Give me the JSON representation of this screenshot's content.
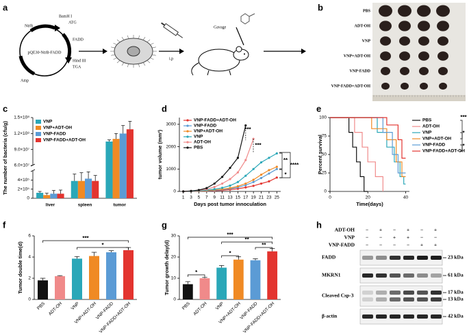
{
  "panel_labels": [
    "a",
    "b",
    "c",
    "d",
    "e",
    "f",
    "g",
    "h"
  ],
  "diagram": {
    "plasmid": "pQE30-NtrB-FADD",
    "sites": [
      "NtrB",
      "BamH I",
      "ATG",
      "FADD",
      "Hind III",
      "TGA",
      "Amp"
    ],
    "route": "i.p",
    "gavage": "Gavage"
  },
  "photo": {
    "groups": [
      "PBS",
      "ADT-OH",
      "VNP",
      "VNP+ADT-OH",
      "VNP-FADD",
      "VNP-FADD+ADT-OH"
    ]
  },
  "chart_data": [
    {
      "type": "bar",
      "ylabel": "The number of bacteria (cfu/g)",
      "categories": [
        "liver",
        "spleen",
        "tumor"
      ],
      "series": [
        {
          "name": "VNP",
          "color": "#2aa7b8",
          "values": [
            120000,
            380000,
            105000000
          ],
          "errors": [
            30000,
            150000,
            3000000
          ]
        },
        {
          "name": "VNP+ADT-OH",
          "color": "#f08a24",
          "values": [
            70000,
            380000,
            110000000
          ],
          "errors": [
            40000,
            180000,
            10000000
          ]
        },
        {
          "name": "VNP-FADD",
          "color": "#5b9bd5",
          "values": [
            100000,
            430000,
            120000000
          ],
          "errors": [
            70000,
            150000,
            15000000
          ]
        },
        {
          "name": "VNP-FADD+ADT-OH",
          "color": "#e3342f",
          "values": [
            100000,
            380000,
            128000000
          ],
          "errors": [
            80000,
            120000,
            15000000
          ]
        }
      ],
      "y_segments": [
        {
          "ylim": [
            0,
            600000
          ],
          "yticks": [
            0,
            {
              "value": 200000,
              "label": "2×10⁵"
            },
            {
              "value": 400000,
              "label": "4×10⁵"
            }
          ]
        },
        {
          "ylim": [
            60000000,
            150000000
          ],
          "yticks": [
            {
              "value": 60000000,
              "label": "6.0×10⁷"
            },
            {
              "value": 90000000,
              "label": "9.0×10⁷"
            },
            {
              "value": 120000000,
              "label": "1.2×10⁸"
            },
            {
              "value": 150000000,
              "label": "1.5×10⁸"
            }
          ]
        }
      ]
    },
    {
      "type": "line",
      "ylabel": "tumor volume (mm³)",
      "xlabel": "Days post tumor innoculation",
      "markers": true,
      "xlim": [
        0,
        26
      ],
      "xticks": [
        1,
        3,
        5,
        7,
        9,
        11,
        13,
        15,
        17,
        19,
        21,
        23,
        25
      ],
      "ylim": [
        0,
        3300
      ],
      "yticks": [
        0,
        1000,
        2000,
        3000
      ],
      "series": [
        {
          "name": "VNP-FADD+ADT-OH",
          "color": "#e3342f",
          "x": [
            1,
            3,
            5,
            7,
            9,
            11,
            13,
            15,
            17,
            19,
            21,
            23,
            25
          ],
          "values": [
            0,
            5,
            10,
            20,
            30,
            50,
            80,
            120,
            180,
            250,
            350,
            450,
            620
          ]
        },
        {
          "name": "VNP-FADD",
          "color": "#5b9bd5",
          "x": [
            1,
            3,
            5,
            7,
            9,
            11,
            13,
            15,
            17,
            19,
            21,
            23,
            25
          ],
          "values": [
            0,
            10,
            20,
            30,
            50,
            80,
            120,
            180,
            280,
            420,
            600,
            800,
            1000
          ]
        },
        {
          "name": "VNP+ADT-OH",
          "color": "#f08a24",
          "x": [
            1,
            3,
            5,
            7,
            9,
            11,
            13,
            15,
            17,
            19,
            21,
            23,
            25
          ],
          "values": [
            0,
            10,
            20,
            40,
            70,
            100,
            150,
            230,
            350,
            520,
            750,
            950,
            1100
          ]
        },
        {
          "name": "VNP",
          "color": "#2aa7b8",
          "x": [
            1,
            3,
            5,
            7,
            9,
            11,
            13,
            15,
            17,
            19,
            21,
            23,
            25
          ],
          "values": [
            0,
            10,
            30,
            60,
            100,
            160,
            260,
            420,
            700,
            1000,
            1300,
            1500,
            1700
          ]
        },
        {
          "name": "ADT-OH",
          "color": "#f08a8a",
          "x": [
            1,
            3,
            5,
            7,
            9,
            11,
            13,
            15,
            17,
            19
          ],
          "values": [
            0,
            20,
            50,
            100,
            200,
            350,
            550,
            850,
            1400,
            2350
          ]
        },
        {
          "name": "PBS",
          "color": "#111111",
          "x": [
            1,
            3,
            5,
            7,
            9,
            11,
            13,
            15,
            17
          ],
          "values": [
            0,
            20,
            60,
            150,
            350,
            650,
            1050,
            1500,
            2950
          ]
        }
      ],
      "annotations": [
        "***",
        "***",
        "**",
        "****",
        "*"
      ]
    },
    {
      "type": "line",
      "ylabel": "Percent survival",
      "xlabel": "Time(days)",
      "markers": false,
      "xlim": [
        0,
        42
      ],
      "xticks": [
        0,
        20,
        40
      ],
      "ylim": [
        0,
        100
      ],
      "yticks": [
        0,
        25,
        50,
        75,
        100
      ],
      "series": [
        {
          "name": "PBS",
          "color": "#111111",
          "x": [
            0,
            10,
            10,
            12,
            12,
            14,
            14,
            16,
            16,
            18,
            18,
            20
          ],
          "values": [
            100,
            100,
            80,
            80,
            60,
            60,
            40,
            40,
            20,
            20,
            0,
            0
          ]
        },
        {
          "name": "ADT-OH",
          "color": "#f08a8a",
          "x": [
            0,
            13,
            13,
            17,
            17,
            20,
            20,
            24,
            24,
            28,
            28
          ],
          "values": [
            100,
            100,
            80,
            80,
            60,
            60,
            40,
            40,
            20,
            20,
            0
          ]
        },
        {
          "name": "VNP",
          "color": "#2aa7b8",
          "x": [
            0,
            25,
            25,
            30,
            30,
            34,
            34,
            37,
            37,
            39,
            39,
            40
          ],
          "values": [
            100,
            100,
            80,
            80,
            60,
            60,
            40,
            40,
            20,
            20,
            10,
            10
          ]
        },
        {
          "name": "VNP+ADT-OH",
          "color": "#f08a24",
          "x": [
            0,
            22,
            22,
            30,
            30,
            35,
            35,
            38,
            38,
            40
          ],
          "values": [
            100,
            100,
            85,
            85,
            70,
            70,
            40,
            40,
            20,
            20
          ]
        },
        {
          "name": "VNP-FADD",
          "color": "#5b9bd5",
          "x": [
            0,
            28,
            28,
            33,
            33,
            36,
            36,
            40
          ],
          "values": [
            100,
            100,
            80,
            80,
            50,
            50,
            25,
            25
          ]
        },
        {
          "name": "VNP-FADD+ADT-OH",
          "color": "#e3342f",
          "x": [
            0,
            30,
            30,
            36,
            36,
            38,
            38,
            40
          ],
          "values": [
            100,
            100,
            90,
            90,
            70,
            70,
            45,
            45
          ]
        }
      ],
      "annotations": [
        "***",
        "*",
        "*"
      ]
    },
    {
      "type": "bar",
      "ylabel": "Tumor double time(d)",
      "categories": [
        "PBS",
        "ADT-OH",
        "VNP",
        "VNP+ADT-OH",
        "VNP-FADD",
        "VNP-FADD+ADT-OH"
      ],
      "values": [
        1.8,
        2.2,
        3.85,
        4.1,
        4.45,
        4.65
      ],
      "errors": [
        0.2,
        0.05,
        0.2,
        0.35,
        0.15,
        0.25
      ],
      "colors": [
        "#111111",
        "#f08a8a",
        "#2aa7b8",
        "#f08a24",
        "#5b9bd5",
        "#e3342f"
      ],
      "ylim": [
        0,
        6
      ],
      "yticks": [
        0,
        2,
        4,
        6
      ],
      "annotations": [
        "***",
        "*"
      ]
    },
    {
      "type": "bar",
      "ylabel": "Tumor growth delay(d)",
      "categories": [
        "PBS",
        "ADT-OH",
        "VNP",
        "VNP+ADT-OH",
        "VNP-FADD",
        "VNP-FADD+ADT-OH"
      ],
      "values": [
        7.2,
        10,
        15,
        18.8,
        18.5,
        22.7
      ],
      "errors": [
        1.2,
        0.4,
        1,
        1.3,
        0.7,
        1.3
      ],
      "colors": [
        "#111111",
        "#f08a8a",
        "#2aa7b8",
        "#f08a24",
        "#5b9bd5",
        "#e3342f"
      ],
      "ylim": [
        0,
        30
      ],
      "yticks": [
        0,
        10,
        20,
        30
      ],
      "annotations": [
        "***",
        "**",
        "**",
        "*",
        "*"
      ]
    }
  ],
  "blot": {
    "treatments": [
      {
        "name": "ADT-OH",
        "signs": [
          "−",
          "+",
          "−",
          "+",
          "−",
          "+"
        ]
      },
      {
        "name": "VNP",
        "signs": [
          "−",
          "−",
          "+",
          "+",
          "−",
          "−"
        ]
      },
      {
        "name": "VNP-FADD",
        "signs": [
          "−",
          "−",
          "−",
          "−",
          "+",
          "+"
        ]
      }
    ],
    "bands": [
      {
        "name": "FADD",
        "sizes": [
          "23 kDa"
        ]
      },
      {
        "name": "MKRN1",
        "sizes": [
          "61 kDa"
        ]
      },
      {
        "name": "Cleaved Csp-3",
        "sizes": [
          "17 kDa",
          "13 kDa"
        ]
      },
      {
        "name": "β-actin",
        "sizes": [
          "42 kDa"
        ]
      }
    ]
  }
}
